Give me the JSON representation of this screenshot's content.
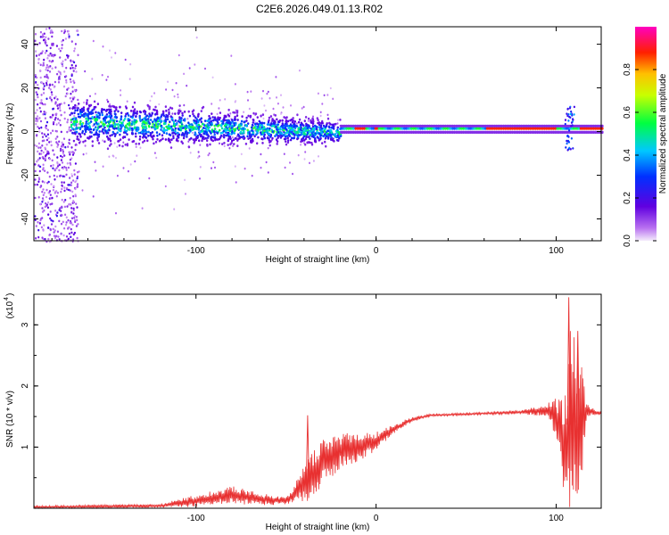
{
  "title": "C2E6.2026.049.01.13.R02",
  "chart_data": [
    {
      "type": "heatmap",
      "xlabel": "Height of straight line (km)",
      "ylabel": "Frequency (Hz)",
      "xlim": [
        -190,
        125
      ],
      "ylim": [
        -50,
        48
      ],
      "x_ticks": [
        -100,
        0,
        100
      ],
      "y_ticks": [
        -40,
        -20,
        0,
        20,
        40
      ],
      "colorbar": {
        "label": "Normalized spectral amplitude",
        "range": [
          0,
          1
        ],
        "ticks": [
          0.0,
          0.2,
          0.4,
          0.6,
          0.8
        ],
        "tick_labels": [
          "0.0",
          "0.2",
          "0.4",
          "0.6",
          "0.8"
        ],
        "colormap": "rainbow (white-violet-blue-cyan-green-yellow-red-magenta)"
      },
      "features": {
        "noise_region_x": [
          -190,
          -170
        ],
        "broad_band_x": [
          -170,
          -20
        ],
        "broad_band_center_freq": [
          5,
          0
        ],
        "broad_band_halfwidth_hz": [
          6,
          3
        ],
        "narrow_line_x": [
          -20,
          125
        ],
        "narrow_line_freq": 1,
        "spike_x": 107,
        "spike_freq_range": [
          -8,
          12
        ]
      }
    },
    {
      "type": "line",
      "xlabel": "Height of straight line (km)",
      "ylabel": "SNR (10 * v/v)",
      "y_multiplier": "(x10",
      "y_multiplier_exp": "4",
      "xlim": [
        -190,
        125
      ],
      "ylim": [
        0,
        3.5
      ],
      "x_ticks": [
        -100,
        0,
        100
      ],
      "y_ticks": [
        1,
        2,
        3
      ],
      "color": "#e83030",
      "envelope_x": [
        -190,
        -120,
        -100,
        -80,
        -65,
        -50,
        -45,
        -38,
        -30,
        -20,
        -10,
        0,
        10,
        20,
        30,
        40,
        60,
        80,
        95,
        100,
        105,
        108,
        110,
        113,
        117,
        125
      ],
      "envelope_mean": [
        0.02,
        0.04,
        0.12,
        0.22,
        0.15,
        0.12,
        0.25,
        0.45,
        0.75,
        0.95,
        1.0,
        1.1,
        1.3,
        1.45,
        1.52,
        1.53,
        1.55,
        1.57,
        1.6,
        1.5,
        1.0,
        1.55,
        1.6,
        1.3,
        1.6,
        1.55
      ],
      "envelope_amp": [
        0.02,
        0.03,
        0.1,
        0.15,
        0.1,
        0.06,
        0.15,
        0.35,
        0.4,
        0.3,
        0.25,
        0.15,
        0.08,
        0.04,
        0.02,
        0.02,
        0.02,
        0.03,
        0.1,
        0.35,
        0.9,
        1.6,
        1.4,
        1.3,
        0.1,
        0.02
      ],
      "peaks": [
        {
          "x": -38,
          "y": 1.52
        },
        {
          "x": 107,
          "y": 3.45
        },
        {
          "x": 112,
          "y": 2.9
        }
      ]
    }
  ]
}
